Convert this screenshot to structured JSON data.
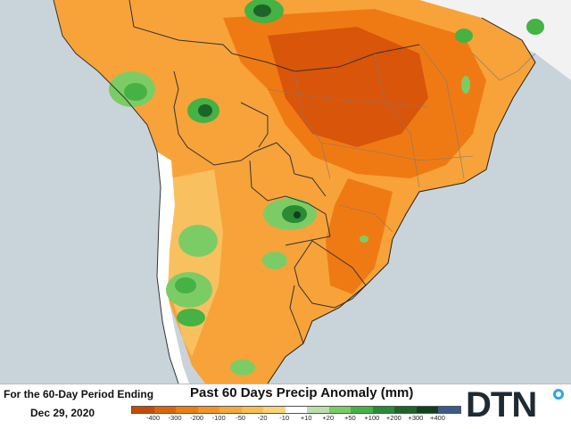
{
  "title": "Past 60 Days Precip Anomaly (mm)",
  "period": {
    "line1": "For the 60-Day Period Ending",
    "line2": "Dec 29, 2020"
  },
  "brand": {
    "logo_text": "DTN",
    "dot_color": "#29a8df"
  },
  "legend": {
    "labels": [
      "-400",
      "-300",
      "-200",
      "-100",
      "-50",
      "-20",
      "-10",
      "+10",
      "+20",
      "+50",
      "+100",
      "+200",
      "+300",
      "+400"
    ],
    "colors": [
      "#c64a06",
      "#e0620a",
      "#ee7d12",
      "#f59328",
      "#f7a83c",
      "#f9bd52",
      "#fad376",
      "#ffffff",
      "#b8e0a8",
      "#7ccc66",
      "#44b244",
      "#2a8a36",
      "#1c6428",
      "#10401c",
      "#3a5a8c"
    ]
  },
  "map_colors": {
    "ocean": "#c8d4da",
    "land_outside": "#f2f2f2",
    "dry_deep": "#d9550a",
    "dry_mid": "#ef7a14",
    "dry_light": "#f7a33a",
    "dry_pale": "#f9c060",
    "wet_light": "#7ccc66",
    "wet_mid": "#44b244",
    "wet_dark": "#1c6428",
    "near_normal": "#ffffff",
    "border": "#333333"
  }
}
